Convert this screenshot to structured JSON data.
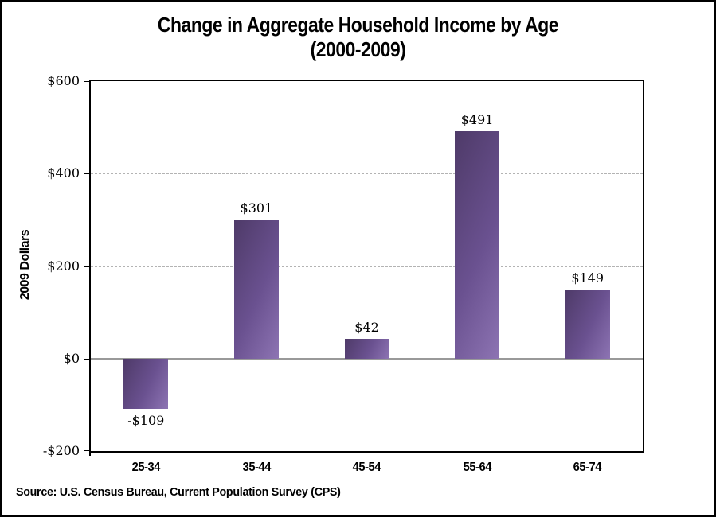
{
  "window": {
    "background_color": "#ffffff",
    "border_color": "#000000"
  },
  "chart_data": {
    "type": "bar",
    "title": "Change in Aggregate Household Income by Age",
    "subtitle": "(2000-2009)",
    "ylabel": "2009 Dollars",
    "xlabel": "",
    "categories": [
      "25-34",
      "35-44",
      "45-54",
      "55-64",
      "65-74"
    ],
    "values": [
      -109,
      301,
      42,
      491,
      149
    ],
    "value_labels": [
      "-$109",
      "$301",
      "$42",
      "$491",
      "$149"
    ],
    "ylim": [
      -200,
      600
    ],
    "yticks": [
      {
        "value": 600,
        "label": "$600"
      },
      {
        "value": 400,
        "label": "$400"
      },
      {
        "value": 200,
        "label": "$200"
      },
      {
        "value": 0,
        "label": "$0"
      },
      {
        "value": -200,
        "label": "-$200"
      }
    ],
    "grid": "horizontal-dashed",
    "legend": "none",
    "bar_colors": {
      "dark": "#4e3a68",
      "mid": "#6a5190",
      "light": "#8d74b3"
    },
    "gridline_color": "#b3b3b3",
    "zero_line_color": "#999999"
  },
  "source_note": "Source: U.S. Census Bureau, Current Population Survey (CPS)"
}
